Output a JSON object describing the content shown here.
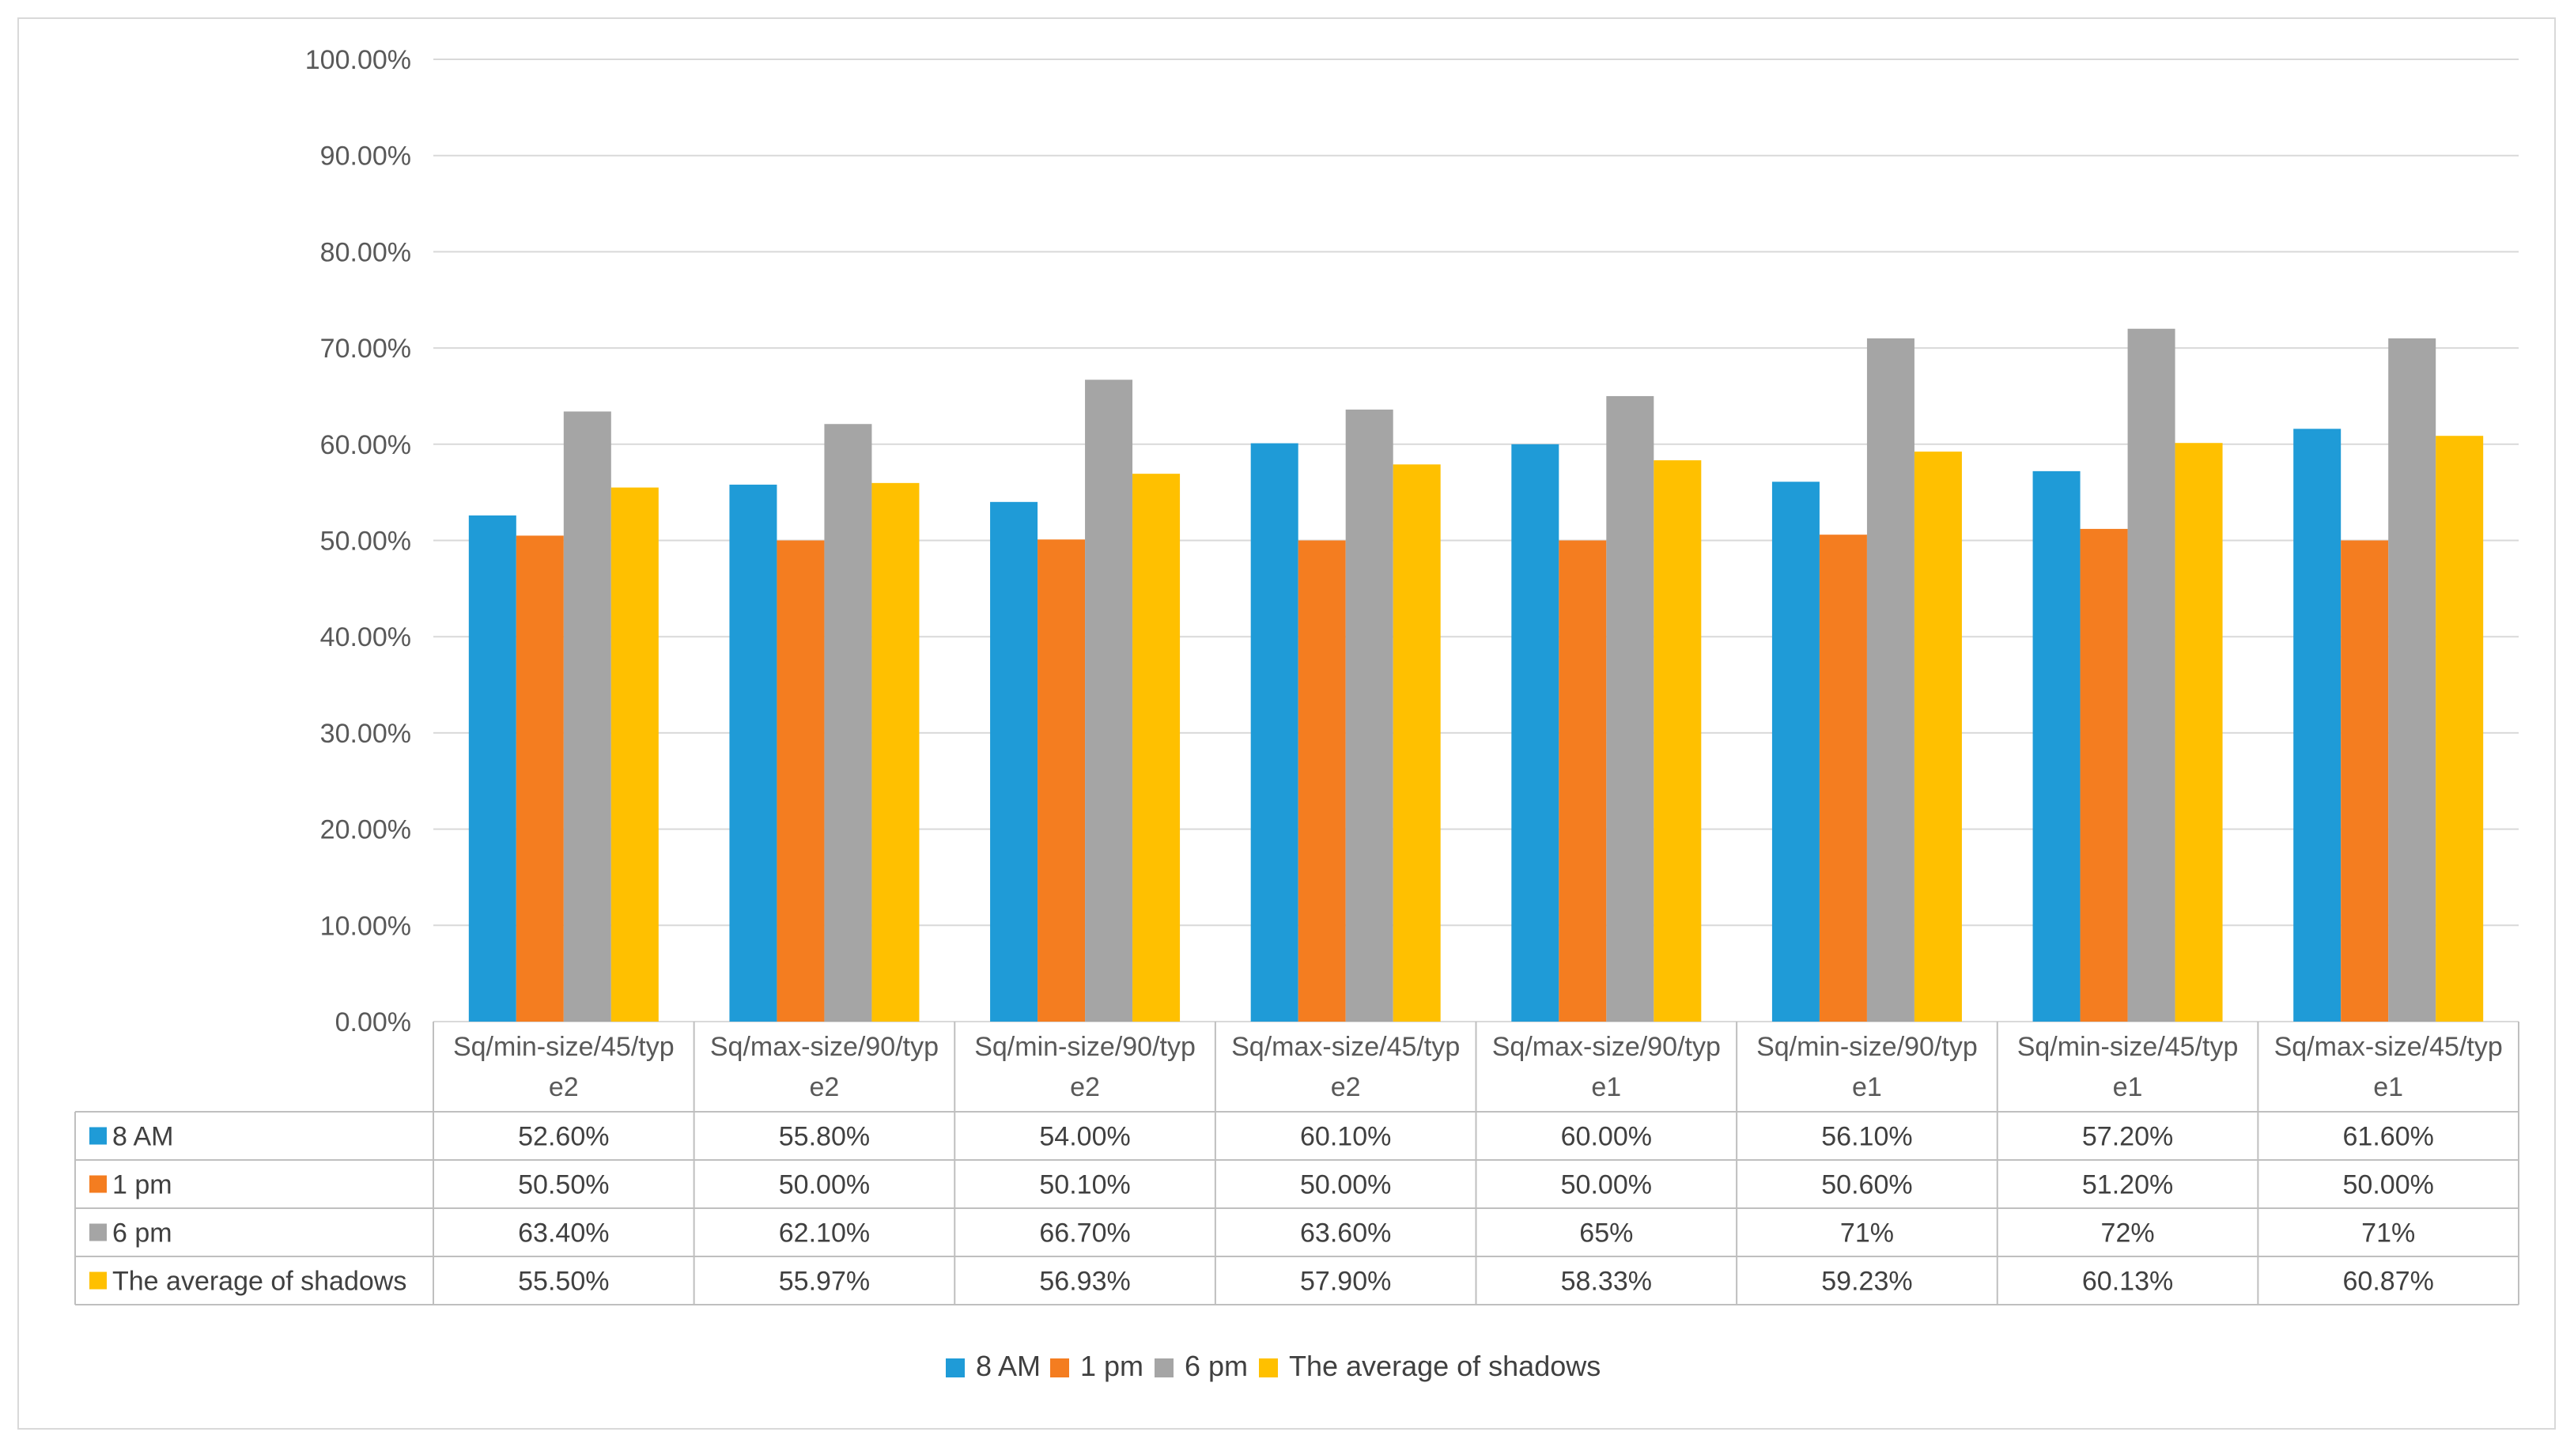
{
  "chart_data": {
    "type": "bar",
    "title": "",
    "xlabel": "",
    "ylabel": "",
    "ylim": [
      0,
      100
    ],
    "y_ticks": [
      "0.00%",
      "10.00%",
      "20.00%",
      "30.00%",
      "40.00%",
      "50.00%",
      "60.00%",
      "70.00%",
      "80.00%",
      "90.00%",
      "100.00%"
    ],
    "grid": true,
    "legend": "bottom",
    "categories": [
      [
        "Sq/min-size/45/typ",
        "e2"
      ],
      [
        "Sq/max-size/90/typ",
        "e2"
      ],
      [
        "Sq/min-size/90/typ",
        "e2"
      ],
      [
        "Sq/max-size/45/typ",
        "e2"
      ],
      [
        "Sq/max-size/90/typ",
        "e1"
      ],
      [
        "Sq/min-size/90/typ",
        "e1"
      ],
      [
        "Sq/min-size/45/typ",
        "e1"
      ],
      [
        "Sq/max-size/45/typ",
        "e1"
      ]
    ],
    "series": [
      {
        "name": "8 AM",
        "color": "#1F9BD7",
        "values": [
          52.6,
          55.8,
          54.0,
          60.1,
          60.0,
          56.1,
          57.2,
          61.6
        ],
        "labels": [
          "52.60%",
          "55.80%",
          "54.00%",
          "60.10%",
          "60.00%",
          "56.10%",
          "57.20%",
          "61.60%"
        ]
      },
      {
        "name": "1 pm",
        "color": "#F47D20",
        "values": [
          50.5,
          50.0,
          50.1,
          50.0,
          50.0,
          50.6,
          51.2,
          50.0
        ],
        "labels": [
          "50.50%",
          "50.00%",
          "50.10%",
          "50.00%",
          "50.00%",
          "50.60%",
          "51.20%",
          "50.00%"
        ]
      },
      {
        "name": "6 pm",
        "color": "#A5A5A5",
        "values": [
          63.4,
          62.1,
          66.7,
          63.6,
          65,
          71,
          72,
          71
        ],
        "labels": [
          "63.40%",
          "62.10%",
          "66.70%",
          "63.60%",
          "65%",
          "71%",
          "72%",
          "71%"
        ]
      },
      {
        "name": "The average of shadows",
        "color": "#FFC000",
        "values": [
          55.5,
          55.97,
          56.93,
          57.9,
          58.33,
          59.23,
          60.13,
          60.87
        ],
        "labels": [
          "55.50%",
          "55.97%",
          "56.93%",
          "57.90%",
          "58.33%",
          "59.23%",
          "60.13%",
          "60.87%"
        ]
      }
    ]
  }
}
